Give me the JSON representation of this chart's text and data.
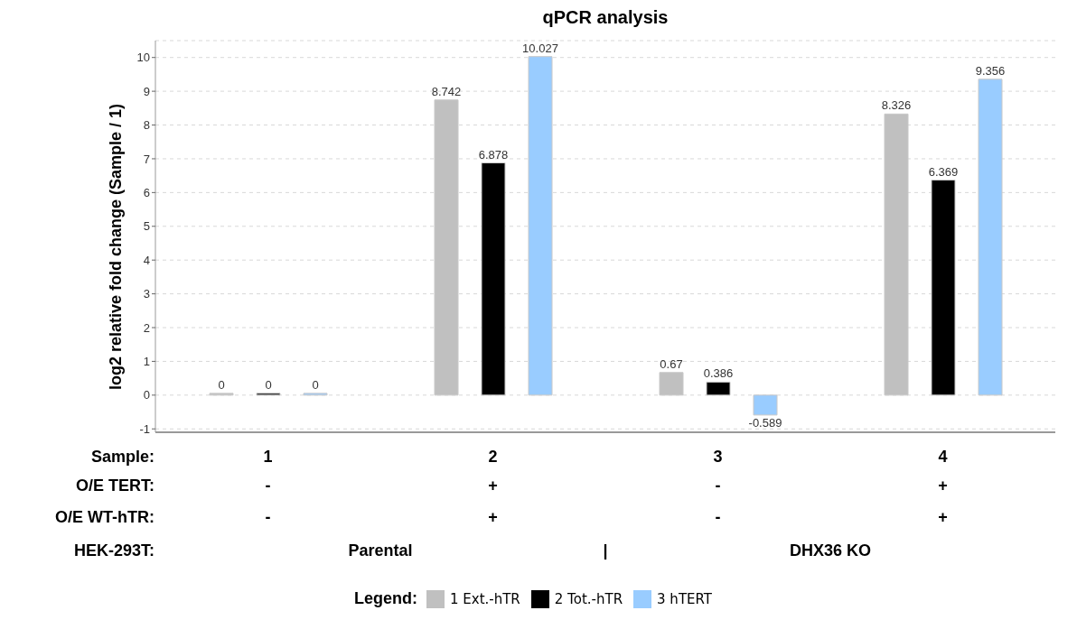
{
  "chart_data": {
    "type": "bar",
    "title": "qPCR analysis",
    "ylabel": "log2 relative fold change (Sample / 1)",
    "xlabel": "Sample:",
    "legend_title": "Legend:",
    "categories": [
      "1",
      "2",
      "3",
      "4"
    ],
    "series": [
      {
        "name": "1 Ext.-hTR",
        "color": "#c0c0c0",
        "values": [
          0,
          8.742,
          0.67,
          8.326
        ]
      },
      {
        "name": "2 Tot.-hTR",
        "color": "#000000",
        "values": [
          0,
          6.878,
          0.386,
          6.369
        ]
      },
      {
        "name": "3 hTERT",
        "color": "#99ccff",
        "values": [
          0,
          10.027,
          -0.589,
          9.356
        ]
      }
    ],
    "ylim": [
      -1.1,
      10.5
    ],
    "yticks": [
      -1,
      0,
      1,
      2,
      3,
      4,
      5,
      6,
      7,
      8,
      9,
      10
    ],
    "grid": "y",
    "legend": "bottom",
    "data_labels": true,
    "annotations": [
      "O/E TERT:",
      "-",
      "+",
      "-",
      "+",
      "O/E WT-hTR:",
      "-",
      "+",
      "-",
      "+",
      "HEK-293T:",
      "Parental",
      "|",
      "DHX36 KO"
    ]
  }
}
